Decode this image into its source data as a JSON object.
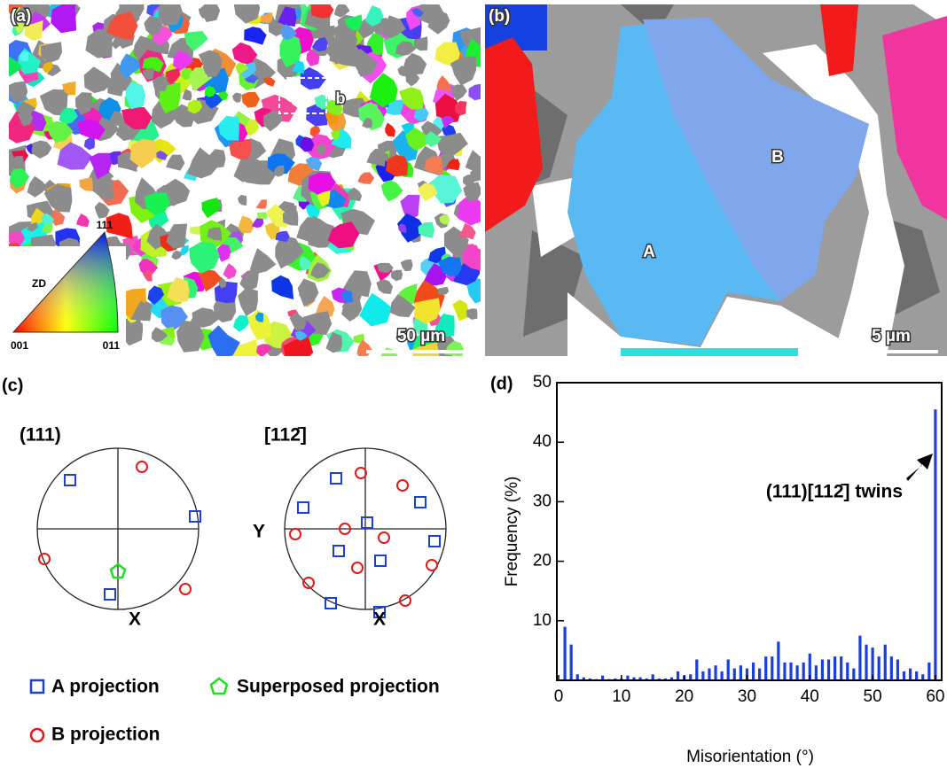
{
  "panel_a": {
    "label": "(a)",
    "inset_label": "b",
    "scale_bar": "50 µm",
    "ipf_key": {
      "axis": "ZD",
      "top": "111",
      "left": "001",
      "right": "011"
    }
  },
  "panel_b": {
    "label": "(b)",
    "grain_a": "A",
    "grain_b": "B",
    "scale_bar": "5 µm"
  },
  "panel_c": {
    "label": "(c)",
    "pole_figures": [
      {
        "title": "(111)",
        "x_axis": "X"
      },
      {
        "title": "[112̄]",
        "x_axis": "X",
        "y_axis": "Y"
      }
    ],
    "legend": [
      "A projection",
      "Superposed projection",
      "B projection"
    ]
  },
  "chart_data": {
    "type": "bar",
    "panel_label": "(d)",
    "x_label": "Misorientation (°)",
    "y_label": "Frequency (%)",
    "annotation": "(111)[112̄] twins",
    "x": [
      1,
      2,
      3,
      4,
      5,
      6,
      7,
      8,
      9,
      10,
      11,
      12,
      13,
      14,
      15,
      16,
      17,
      18,
      19,
      20,
      21,
      22,
      23,
      24,
      25,
      26,
      27,
      28,
      29,
      30,
      31,
      32,
      33,
      34,
      35,
      36,
      37,
      38,
      39,
      40,
      41,
      42,
      43,
      44,
      45,
      46,
      47,
      48,
      49,
      50,
      51,
      52,
      53,
      54,
      55,
      56,
      57,
      58,
      59,
      60
    ],
    "values": [
      9,
      6,
      1,
      0.5,
      0.3,
      0.2,
      0.8,
      0.2,
      0.3,
      0.3,
      0.8,
      0.5,
      0.5,
      0.3,
      1,
      0.3,
      0.3,
      0.5,
      1.5,
      0.8,
      1,
      3.5,
      1.5,
      2,
      2.5,
      1.5,
      3.5,
      2,
      2.5,
      2,
      3,
      2,
      4,
      4,
      6.5,
      3,
      3,
      2.5,
      3,
      4.5,
      2.5,
      3.5,
      3.5,
      4,
      4,
      3,
      2,
      7.5,
      6,
      5.5,
      4,
      6,
      4,
      3.5,
      1.5,
      2,
      1.5,
      1,
      3,
      45.5
    ],
    "color": "#1a3ee0",
    "xlim": [
      0,
      61
    ],
    "ylim": [
      0,
      50
    ],
    "xticks": [
      0,
      10,
      20,
      30,
      40,
      50,
      60
    ],
    "yticks": [
      10,
      20,
      30,
      40,
      50
    ]
  }
}
